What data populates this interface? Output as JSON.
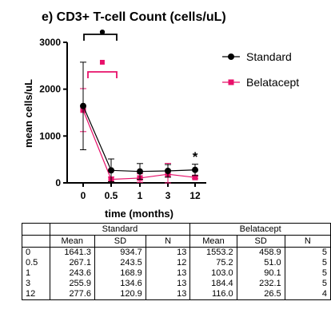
{
  "chart_data": {
    "type": "line",
    "title": "e) CD3+ T-cell Count (cells/uL)",
    "xlabel": "time (months)",
    "ylabel": "mean cells/uL",
    "categories": [
      "0",
      "0.5",
      "1",
      "3",
      "12"
    ],
    "yticks": [
      "0",
      "1000",
      "2000",
      "3000"
    ],
    "ylim": [
      0,
      3000
    ],
    "legend_position": "right",
    "series": [
      {
        "name": "Standard",
        "color": "#000000",
        "marker": "circle",
        "values": [
          1641.3,
          267.1,
          243.6,
          255.9,
          277.6
        ],
        "sd": [
          934.7,
          243.5,
          168.9,
          134.6,
          120.9
        ]
      },
      {
        "name": "Belatacept",
        "color": "#e8106a",
        "marker": "square",
        "values": [
          1553.2,
          75.2,
          103.0,
          184.4,
          116.0
        ],
        "sd": [
          458.9,
          51.0,
          90.1,
          232.1,
          26.5
        ]
      }
    ],
    "annotations": [
      {
        "text": "•",
        "color": "#000000",
        "near": "0–0.5 bracket"
      },
      {
        "text": "▪",
        "color": "#e8106a",
        "near": "0–0.5 bracket"
      },
      {
        "text": "*",
        "color": "#000000",
        "near": "12"
      }
    ]
  },
  "table": {
    "groups": [
      "Standard",
      "Belatacept"
    ],
    "columns": [
      "Mean",
      "SD",
      "N",
      "Mean",
      "SD",
      "N"
    ],
    "rows": [
      [
        "0",
        "1641.3",
        "934.7",
        "13",
        "1553.2",
        "458.9",
        "5"
      ],
      [
        "0.5",
        "267.1",
        "243.5",
        "12",
        "75.2",
        "51.0",
        "5"
      ],
      [
        "1",
        "243.6",
        "168.9",
        "13",
        "103.0",
        "90.1",
        "5"
      ],
      [
        "3",
        "255.9",
        "134.6",
        "13",
        "184.4",
        "232.1",
        "5"
      ],
      [
        "12",
        "277.6",
        "120.9",
        "13",
        "116.0",
        "26.5",
        "4"
      ]
    ]
  }
}
